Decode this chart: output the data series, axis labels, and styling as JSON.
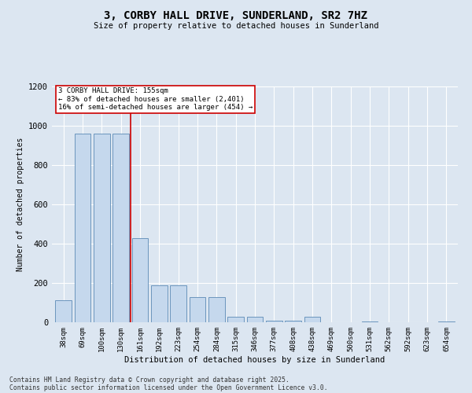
{
  "title_line1": "3, CORBY HALL DRIVE, SUNDERLAND, SR2 7HZ",
  "title_line2": "Size of property relative to detached houses in Sunderland",
  "xlabel": "Distribution of detached houses by size in Sunderland",
  "ylabel": "Number of detached properties",
  "categories": [
    "38sqm",
    "69sqm",
    "100sqm",
    "130sqm",
    "161sqm",
    "192sqm",
    "223sqm",
    "254sqm",
    "284sqm",
    "315sqm",
    "346sqm",
    "377sqm",
    "408sqm",
    "438sqm",
    "469sqm",
    "500sqm",
    "531sqm",
    "562sqm",
    "592sqm",
    "623sqm",
    "654sqm"
  ],
  "values": [
    113,
    960,
    960,
    960,
    430,
    190,
    190,
    130,
    130,
    30,
    30,
    10,
    10,
    30,
    0,
    0,
    5,
    0,
    0,
    0,
    5
  ],
  "bar_color": "#c5d8ed",
  "bar_edge_color": "#5b8ab5",
  "background_color": "#dce6f1",
  "grid_color": "#ffffff",
  "property_line_x": 3.5,
  "annotation_text_line1": "3 CORBY HALL DRIVE: 155sqm",
  "annotation_text_line2": "← 83% of detached houses are smaller (2,401)",
  "annotation_text_line3": "16% of semi-detached houses are larger (454) →",
  "annotation_box_color": "#ffffff",
  "annotation_border_color": "#cc0000",
  "red_line_color": "#cc0000",
  "ylim": [
    0,
    1200
  ],
  "yticks": [
    0,
    200,
    400,
    600,
    800,
    1000,
    1200
  ],
  "footer_line1": "Contains HM Land Registry data © Crown copyright and database right 2025.",
  "footer_line2": "Contains public sector information licensed under the Open Government Licence v3.0."
}
